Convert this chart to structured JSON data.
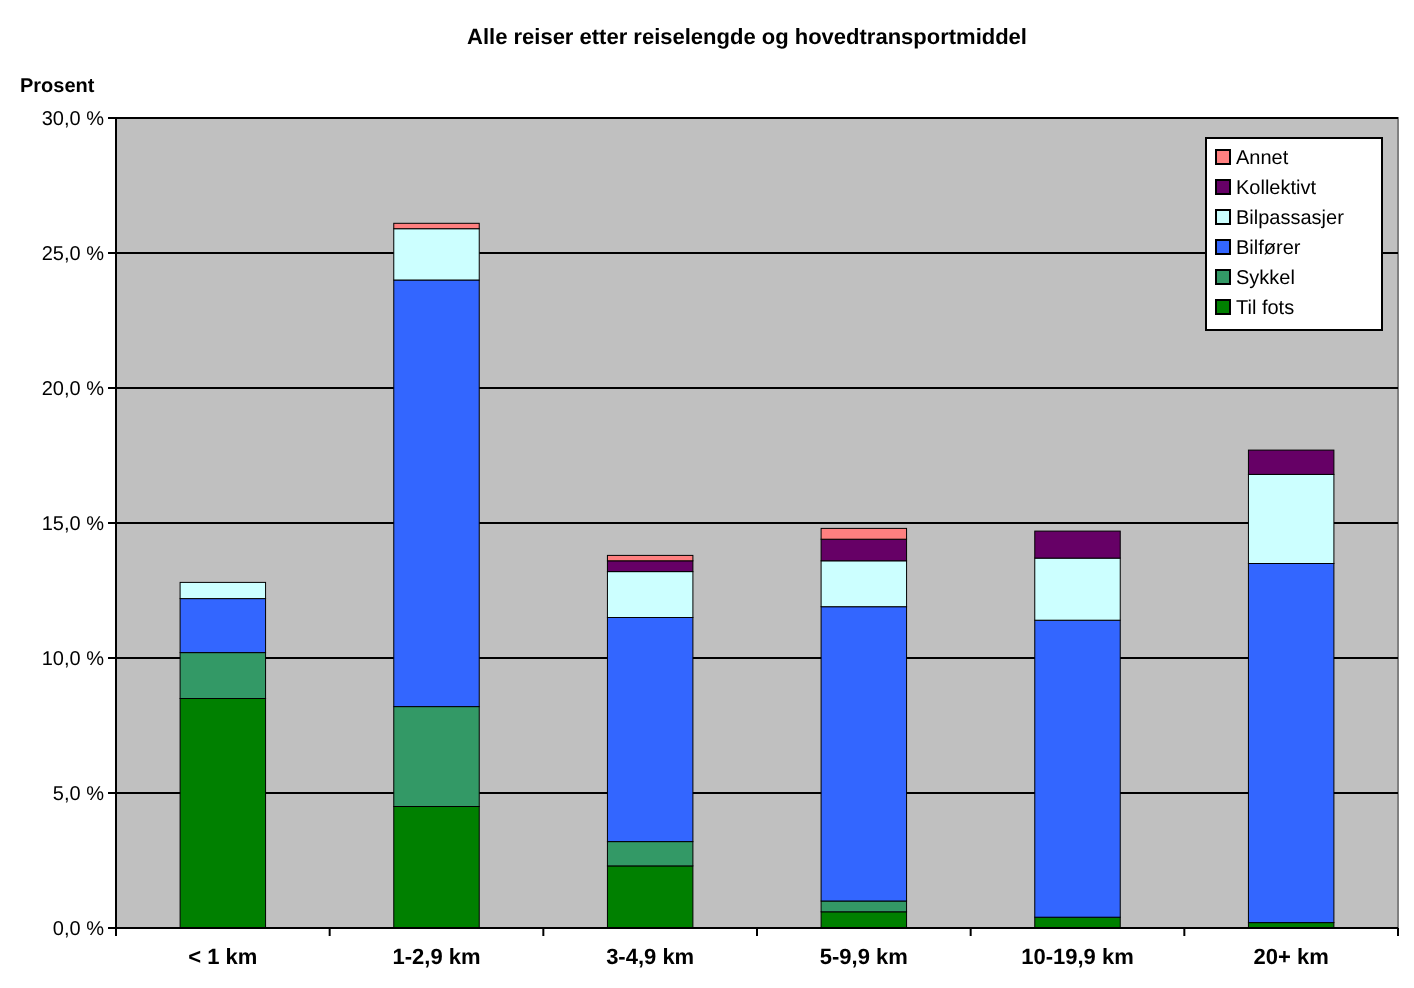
{
  "chart_data": {
    "type": "bar",
    "stacked": true,
    "title": "Alle reiser etter reiselengde og hovedtransportmiddel",
    "ylabel": "Prosent",
    "categories": [
      "< 1 km",
      "1-2,9 km",
      "3-4,9 km",
      "5-9,9 km",
      "10-19,9 km",
      "20+ km"
    ],
    "series": [
      {
        "name": "Til fots",
        "color": "#008000",
        "values": [
          8.5,
          4.5,
          2.3,
          0.6,
          0.4,
          0.2
        ]
      },
      {
        "name": "Sykkel",
        "color": "#339966",
        "values": [
          1.7,
          3.7,
          0.9,
          0.4,
          0,
          0
        ]
      },
      {
        "name": "Bilfører",
        "color": "#3366ff",
        "values": [
          2.0,
          15.8,
          8.3,
          10.9,
          11.0,
          13.3
        ]
      },
      {
        "name": "Bilpassasjer",
        "color": "#ccffff",
        "values": [
          0.6,
          1.9,
          1.7,
          1.7,
          2.3,
          3.3
        ]
      },
      {
        "name": "Kollektivt",
        "color": "#660066",
        "values": [
          0,
          0,
          0.4,
          0.8,
          1.0,
          0.9
        ]
      },
      {
        "name": "Annet",
        "color": "#ff8080",
        "values": [
          0,
          0.2,
          0.2,
          0.4,
          0,
          0
        ]
      }
    ],
    "ylim": [
      0,
      30
    ],
    "yticks": [
      {
        "value": 0,
        "label": "0,0 %"
      },
      {
        "value": 5,
        "label": "5,0 %"
      },
      {
        "value": 10,
        "label": "10,0 %"
      },
      {
        "value": 15,
        "label": "15,0 %"
      },
      {
        "value": 20,
        "label": "20,0 %"
      },
      {
        "value": 25,
        "label": "25,0 %"
      },
      {
        "value": 30,
        "label": "30,0 %"
      }
    ],
    "grid": "y",
    "legend": "top right"
  }
}
